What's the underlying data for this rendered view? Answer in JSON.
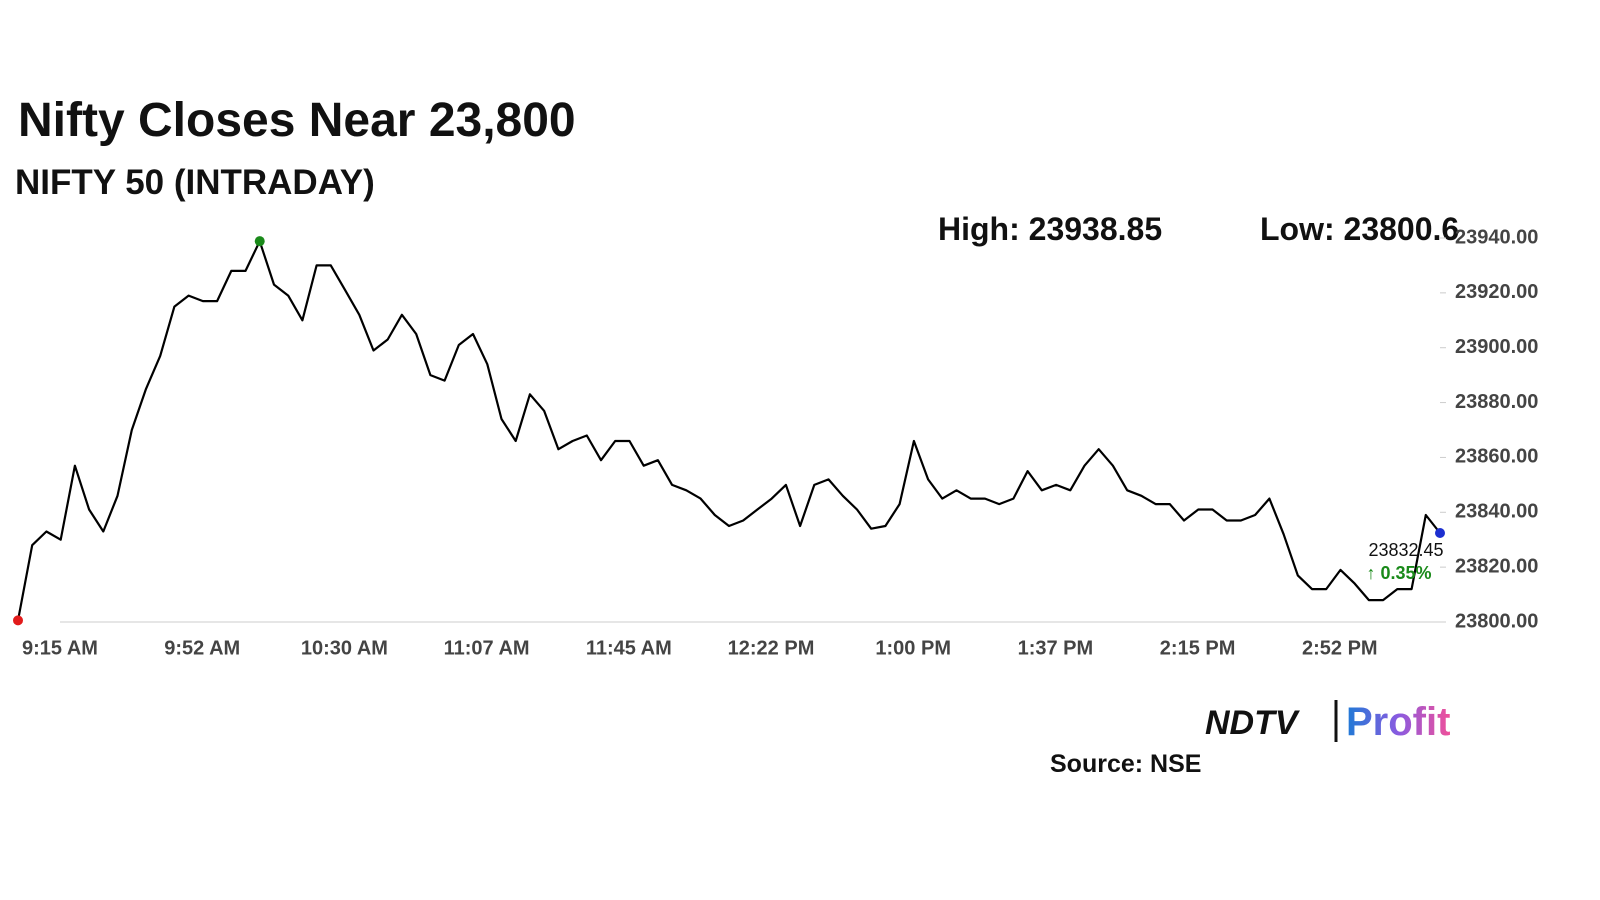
{
  "chart_data": {
    "type": "line",
    "title": "Nifty Closes Near 23,800",
    "subtitle": "NIFTY 50 (INTRADAY)",
    "high_label": "High:",
    "low_label": "Low:",
    "change_label": "↑ 0.35%",
    "source": "Source: NSE",
    "logo": {
      "left": "NDTV",
      "right": "Profit"
    },
    "color": "#000000",
    "categories": [
      "9:15 AM",
      null,
      null,
      null,
      null,
      null,
      null,
      null,
      null,
      null,
      "9:52 AM",
      null,
      null,
      null,
      null,
      null,
      null,
      null,
      null,
      null,
      "10:30 AM",
      null,
      null,
      null,
      null,
      null,
      null,
      null,
      null,
      null,
      "11:07 AM",
      null,
      null,
      null,
      null,
      null,
      null,
      null,
      null,
      null,
      "11:45 AM",
      null,
      null,
      null,
      null,
      null,
      null,
      null,
      null,
      null,
      "12:22 PM",
      null,
      null,
      null,
      null,
      null,
      null,
      null,
      null,
      null,
      "1:00 PM",
      null,
      null,
      null,
      null,
      null,
      null,
      null,
      null,
      null,
      "1:37 PM",
      null,
      null,
      null,
      null,
      null,
      null,
      null,
      null,
      null,
      "2:15 PM",
      null,
      null,
      null,
      null,
      null,
      null,
      null,
      null,
      null,
      "2:52 PM",
      null,
      null,
      null,
      null,
      null,
      null,
      null,
      null,
      null,
      null
    ],
    "values": [
      23800.6,
      23828,
      23833,
      23830,
      23857,
      23841,
      23833,
      23846,
      23870,
      23885,
      23897,
      23915,
      23919,
      23917,
      23917,
      23928,
      23928,
      23938.85,
      23923,
      23919,
      23910,
      23930,
      23930,
      23921,
      23912,
      23899,
      23903,
      23912,
      23905,
      23890,
      23888,
      23901,
      23905,
      23894,
      23874,
      23866,
      23883,
      23877,
      23863,
      23866,
      23868,
      23859,
      23866,
      23866,
      23857,
      23859,
      23850,
      23848,
      23845,
      23839,
      23835,
      23837,
      23841,
      23845,
      23850,
      23835,
      23850,
      23852,
      23846,
      23841,
      23834,
      23835,
      23843,
      23866,
      23852,
      23845,
      23848,
      23845,
      23845,
      23843,
      23845,
      23855,
      23848,
      23850,
      23848,
      23857,
      23863,
      23857,
      23848,
      23846,
      23843,
      23843,
      23837,
      23841,
      23841,
      23837,
      23837,
      23839,
      23845,
      23832,
      23817,
      23812,
      23812,
      23819,
      23814,
      23808,
      23808,
      23812,
      23812,
      23839,
      23832.45
    ],
    "ylim": [
      23800,
      23940
    ],
    "yticks": [
      {
        "value": 23800,
        "label": "23800.00"
      },
      {
        "value": 23820,
        "label": "23820.00"
      },
      {
        "value": 23840,
        "label": "23840.00"
      },
      {
        "value": 23860,
        "label": "23860.00"
      },
      {
        "value": 23880,
        "label": "23880.00"
      },
      {
        "value": 23900,
        "label": "23900.00"
      },
      {
        "value": 23920,
        "label": "23920.00"
      },
      {
        "value": 23940,
        "label": "23940.00"
      }
    ]
  }
}
